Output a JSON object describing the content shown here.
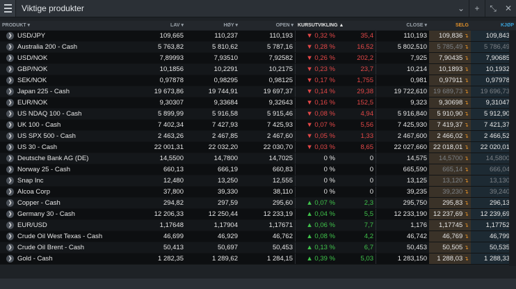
{
  "window": {
    "title": "Viktige produkter",
    "buttons": [
      "menu-icon",
      "chevron-down-icon",
      "plus-icon",
      "resize-icon",
      "close-icon"
    ]
  },
  "columns": {
    "product": "PRODUKT ▾",
    "low": "LAV ▾",
    "high": "HØY ▾",
    "open": "OPEN ▾",
    "pct": "KURSUTVIKLING ▲",
    "change": "",
    "close": "CLOSE ▾",
    "sell": "SELG",
    "buy": "KJØP"
  },
  "colors": {
    "negative": "#e34747",
    "positive": "#3fc24a",
    "sell": "#e0902a",
    "buy": "#3aa2d8"
  },
  "rows": [
    {
      "name": "USD/JPY",
      "low": "109,665",
      "high": "110,237",
      "open": "110,193",
      "pct": "▼ 0,32 %",
      "change": "35,4",
      "close": "110,193",
      "sell": "109,836",
      "buy": "109,843",
      "dir": "neg",
      "flat": false
    },
    {
      "name": "Australia 200 - Cash",
      "low": "5 763,82",
      "high": "5 810,62",
      "open": "5 787,16",
      "pct": "▼ 0,28 %",
      "change": "16,52",
      "close": "5 802,510",
      "sell": "5 785,49",
      "buy": "5 786,49",
      "dir": "neg",
      "flat": true
    },
    {
      "name": "USD/NOK",
      "low": "7,89993",
      "high": "7,93510",
      "open": "7,92582",
      "pct": "▼ 0,26 %",
      "change": "202,2",
      "close": "7,925",
      "sell": "7,90435",
      "buy": "7,90685",
      "dir": "neg",
      "flat": false
    },
    {
      "name": "GBP/NOK",
      "low": "10,1856",
      "high": "10,2291",
      "open": "10,2175",
      "pct": "▼ 0,23 %",
      "change": "23,7",
      "close": "10,214",
      "sell": "10,1893",
      "buy": "10,1932",
      "dir": "neg",
      "flat": false
    },
    {
      "name": "SEK/NOK",
      "low": "0,97878",
      "high": "0,98295",
      "open": "0,98125",
      "pct": "▼ 0,17 %",
      "change": "1,755",
      "close": "0,981",
      "sell": "0,97911",
      "buy": "0,97978",
      "dir": "neg",
      "flat": false
    },
    {
      "name": "Japan 225 - Cash",
      "low": "19 673,86",
      "high": "19 744,91",
      "open": "19 697,37",
      "pct": "▼ 0,14 %",
      "change": "29,38",
      "close": "19 722,610",
      "sell": "19 689,73",
      "buy": "19 696,73",
      "dir": "neg",
      "flat": true
    },
    {
      "name": "EUR/NOK",
      "low": "9,30307",
      "high": "9,33684",
      "open": "9,32643",
      "pct": "▼ 0,16 %",
      "change": "152,5",
      "close": "9,323",
      "sell": "9,30698",
      "buy": "9,31047",
      "dir": "neg",
      "flat": false
    },
    {
      "name": "US NDAQ 100 - Cash",
      "low": "5 899,99",
      "high": "5 916,58",
      "open": "5 915,46",
      "pct": "▼ 0,08 %",
      "change": "4,94",
      "close": "5 916,840",
      "sell": "5 910,90",
      "buy": "5 912,90",
      "dir": "neg",
      "flat": false
    },
    {
      "name": "UK 100 - Cash",
      "low": "7 402,34",
      "high": "7 427,93",
      "open": "7 425,93",
      "pct": "▼ 0,07 %",
      "change": "5,56",
      "close": "7 425,930",
      "sell": "7 419,37",
      "buy": "7 421,37",
      "dir": "neg",
      "flat": false
    },
    {
      "name": "US SPX 500 - Cash",
      "low": "2 463,26",
      "high": "2 467,85",
      "open": "2 467,60",
      "pct": "▼ 0,05 %",
      "change": "1,33",
      "close": "2 467,600",
      "sell": "2 466,02",
      "buy": "2 466,52",
      "dir": "neg",
      "flat": false
    },
    {
      "name": "US 30 - Cash",
      "low": "22 001,31",
      "high": "22 032,20",
      "open": "22 030,70",
      "pct": "▼ 0,03 %",
      "change": "8,65",
      "close": "22 027,660",
      "sell": "22 018,01",
      "buy": "22 020,01",
      "dir": "neg",
      "flat": false
    },
    {
      "name": "Deutsche Bank AG (DE)",
      "low": "14,5500",
      "high": "14,7800",
      "open": "14,7025",
      "pct": "0 %",
      "change": "0",
      "close": "14,575",
      "sell": "14,5700",
      "buy": "14,5800",
      "dir": "zero",
      "flat": true
    },
    {
      "name": "Norway 25 - Cash",
      "low": "660,13",
      "high": "666,19",
      "open": "660,83",
      "pct": "0 %",
      "change": "0",
      "close": "665,590",
      "sell": "665,14",
      "buy": "666,04",
      "dir": "zero",
      "flat": true
    },
    {
      "name": "Snap Inc",
      "low": "12,480",
      "high": "13,250",
      "open": "12,555",
      "pct": "0 %",
      "change": "0",
      "close": "13,125",
      "sell": "13,120",
      "buy": "13,130",
      "dir": "zero",
      "flat": true
    },
    {
      "name": "Alcoa Corp",
      "low": "37,800",
      "high": "39,330",
      "open": "38,110",
      "pct": "0 %",
      "change": "0",
      "close": "39,235",
      "sell": "39,230",
      "buy": "39,240",
      "dir": "zero",
      "flat": true
    },
    {
      "name": "Copper - Cash",
      "low": "294,82",
      "high": "297,59",
      "open": "295,60",
      "pct": "▲ 0,07 %",
      "change": "2,3",
      "close": "295,750",
      "sell": "295,83",
      "buy": "296,13",
      "dir": "pos",
      "flat": false
    },
    {
      "name": "Germany 30 - Cash",
      "low": "12 206,33",
      "high": "12 250,44",
      "open": "12 233,19",
      "pct": "▲ 0,04 %",
      "change": "5,5",
      "close": "12 233,190",
      "sell": "12 237,69",
      "buy": "12 239,69",
      "dir": "pos",
      "flat": false
    },
    {
      "name": "EUR/USD",
      "low": "1,17648",
      "high": "1,17904",
      "open": "1,17671",
      "pct": "▲ 0,06 %",
      "change": "7,7",
      "close": "1,176",
      "sell": "1,17745",
      "buy": "1,17752",
      "dir": "pos",
      "flat": false
    },
    {
      "name": "Crude Oil West Texas - Cash",
      "low": "46,699",
      "high": "46,929",
      "open": "46,762",
      "pct": "▲ 0,08 %",
      "change": "4,2",
      "close": "46,742",
      "sell": "46,769",
      "buy": "46,799",
      "dir": "pos",
      "flat": false
    },
    {
      "name": "Crude Oil Brent - Cash",
      "low": "50,413",
      "high": "50,697",
      "open": "50,453",
      "pct": "▲ 0,13 %",
      "change": "6,7",
      "close": "50,453",
      "sell": "50,505",
      "buy": "50,535",
      "dir": "pos",
      "flat": false
    },
    {
      "name": "Gold - Cash",
      "low": "1 282,35",
      "high": "1 289,62",
      "open": "1 284,15",
      "pct": "▲ 0,39 %",
      "change": "5,03",
      "close": "1 283,150",
      "sell": "1 288,03",
      "buy": "1 288,33",
      "dir": "pos",
      "flat": false
    }
  ]
}
